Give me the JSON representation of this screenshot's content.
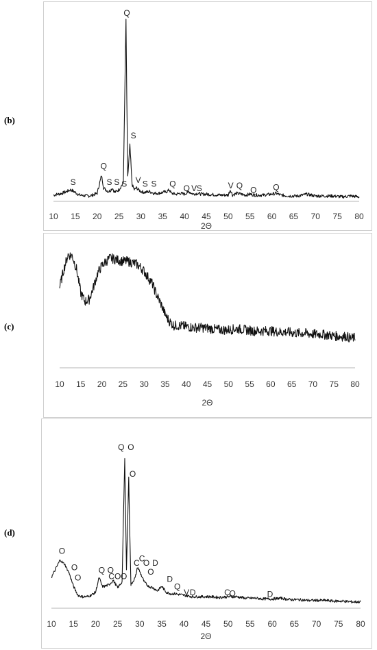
{
  "chart_data": [
    {
      "id": "b",
      "type": "line",
      "panel_label": "(b)",
      "xlabel": "2Θ",
      "xlim": [
        10,
        80
      ],
      "xticks": [
        "10",
        "15",
        "20",
        "25",
        "30",
        "35",
        "40",
        "45",
        "50",
        "55",
        "60",
        "65",
        "70",
        "75",
        "80"
      ],
      "grid": false,
      "series": [
        {
          "x": [
            10,
            12,
            14,
            16,
            18,
            19,
            20,
            21,
            21.5,
            22,
            22.5,
            23,
            23.5,
            24,
            25,
            26,
            26.6,
            27,
            27.5,
            28,
            28.5,
            29,
            30,
            31,
            32,
            33,
            34,
            36,
            36.5,
            37,
            38,
            39,
            40,
            41,
            42,
            43,
            44,
            45,
            48,
            50,
            50.5,
            51,
            52,
            54,
            55,
            56,
            58,
            60,
            61,
            62,
            64,
            66,
            68,
            70,
            72,
            74,
            76,
            78,
            80
          ],
          "y": [
            2,
            3,
            5,
            2,
            1.5,
            2,
            3,
            13,
            6,
            5,
            4,
            4.5,
            6,
            3.5,
            5,
            9,
            100,
            12,
            30,
            8,
            5,
            6,
            4,
            3.5,
            4,
            3,
            3,
            4,
            5,
            3,
            2.5,
            3,
            2.5,
            4,
            2.5,
            3,
            2.5,
            2.5,
            2,
            2,
            5,
            2,
            3,
            2,
            2.5,
            2,
            2,
            2.5,
            3,
            2,
            1.5,
            1.5,
            2.5,
            1.5,
            1.5,
            1.5,
            1,
            1.5,
            1
          ]
        }
      ],
      "annotations": [
        {
          "x": 14.5,
          "y": 7,
          "text": "S"
        },
        {
          "x": 21.5,
          "y": 16,
          "text": "Q"
        },
        {
          "x": 22.8,
          "y": 7,
          "text": "S"
        },
        {
          "x": 24.5,
          "y": 7,
          "text": "S"
        },
        {
          "x": 26.2,
          "y": 6,
          "text": "S"
        },
        {
          "x": 26.8,
          "y": 102,
          "text": "Q"
        },
        {
          "x": 28.3,
          "y": 33,
          "text": "S"
        },
        {
          "x": 29.4,
          "y": 8,
          "text": "V"
        },
        {
          "x": 31,
          "y": 6,
          "text": "S"
        },
        {
          "x": 33,
          "y": 6,
          "text": "S"
        },
        {
          "x": 37.3,
          "y": 6,
          "text": "Q"
        },
        {
          "x": 40.5,
          "y": 3.5,
          "text": "Q"
        },
        {
          "x": 42.2,
          "y": 3.5,
          "text": "V"
        },
        {
          "x": 43.4,
          "y": 3.5,
          "text": "S"
        },
        {
          "x": 50.6,
          "y": 5,
          "text": "V"
        },
        {
          "x": 52.6,
          "y": 5,
          "text": "Q"
        },
        {
          "x": 55.8,
          "y": 2.5,
          "text": "Q"
        },
        {
          "x": 61,
          "y": 4,
          "text": "Q"
        }
      ]
    },
    {
      "id": "c",
      "type": "line",
      "panel_label": "(c)",
      "xlabel": "2Θ",
      "xlim": [
        10,
        80
      ],
      "xticks": [
        "10",
        "15",
        "20",
        "25",
        "30",
        "35",
        "40",
        "45",
        "50",
        "55",
        "60",
        "65",
        "70",
        "75",
        "80"
      ],
      "grid": false,
      "series": [
        {
          "x": [
            10,
            11,
            12,
            13,
            14,
            15,
            16,
            17,
            18,
            19,
            20,
            21,
            22,
            23,
            24,
            25,
            26,
            27,
            28,
            29,
            30,
            31,
            32,
            33,
            34,
            35,
            36,
            37,
            38,
            40,
            42,
            44,
            46,
            48,
            50,
            52,
            54,
            56,
            58,
            60,
            62,
            64,
            66,
            68,
            70,
            72,
            74,
            76,
            78,
            79,
            80
          ],
          "y": [
            55,
            72,
            85,
            84,
            72,
            50,
            42,
            44,
            55,
            68,
            75,
            79,
            82,
            81,
            80,
            79,
            79,
            78,
            77,
            74,
            70,
            64,
            58,
            48,
            40,
            30,
            24,
            20,
            20,
            19,
            18,
            18,
            17,
            16,
            16,
            17,
            16,
            15,
            15,
            15,
            14,
            14,
            13,
            13,
            12,
            12,
            11,
            10,
            10,
            8,
            9
          ]
        }
      ]
    },
    {
      "id": "d",
      "type": "line",
      "panel_label": "(d)",
      "xlabel": "2Θ",
      "xlim": [
        10,
        80
      ],
      "xticks": [
        "10",
        "15",
        "20",
        "25",
        "30",
        "35",
        "40",
        "45",
        "50",
        "55",
        "60",
        "65",
        "70",
        "75",
        "80"
      ],
      "grid": false,
      "series": [
        {
          "x": [
            10,
            11,
            12,
            12.5,
            13,
            14,
            15,
            16,
            17,
            18,
            19,
            20,
            20.8,
            21.5,
            22,
            23,
            24,
            25,
            26,
            26.6,
            27,
            27.5,
            28,
            29,
            29.5,
            30,
            31,
            32,
            33,
            34,
            35,
            36,
            37,
            38,
            40,
            42,
            44,
            46,
            48,
            50,
            52,
            54,
            56,
            58,
            60,
            62,
            64,
            66,
            68,
            70,
            72,
            74,
            76,
            78,
            80
          ],
          "y": [
            18,
            24,
            30,
            28,
            27,
            21,
            12,
            6,
            5,
            5,
            6,
            8,
            18,
            12,
            12,
            13,
            16,
            11,
            15,
            98,
            24,
            85,
            13,
            18,
            25,
            22,
            15,
            12,
            11,
            9,
            12,
            8,
            7,
            7,
            6,
            5,
            5,
            5,
            4.5,
            5,
            5,
            4,
            4,
            3.5,
            3.5,
            4,
            3,
            3,
            2.5,
            2.5,
            2.5,
            2,
            2,
            1.5,
            1.5
          ]
        }
      ],
      "annotations": [
        {
          "x": 12.4,
          "y": 33,
          "text": "O"
        },
        {
          "x": 15.2,
          "y": 22,
          "text": "O"
        },
        {
          "x": 16,
          "y": 15,
          "text": "O"
        },
        {
          "x": 21.4,
          "y": 20,
          "text": "Q"
        },
        {
          "x": 23.4,
          "y": 20,
          "text": "O"
        },
        {
          "x": 23.6,
          "y": 16,
          "text": "C"
        },
        {
          "x": 25,
          "y": 16,
          "text": "O"
        },
        {
          "x": 26.4,
          "y": 16,
          "text": "O"
        },
        {
          "x": 25.8,
          "y": 103,
          "text": "Q"
        },
        {
          "x": 28,
          "y": 103,
          "text": "O"
        },
        {
          "x": 28.4,
          "y": 85,
          "text": "O"
        },
        {
          "x": 29.3,
          "y": 25,
          "text": "C"
        },
        {
          "x": 30.5,
          "y": 28,
          "text": "C"
        },
        {
          "x": 31.5,
          "y": 25,
          "text": "O"
        },
        {
          "x": 33.5,
          "y": 25,
          "text": "D"
        },
        {
          "x": 32.5,
          "y": 19,
          "text": "O"
        },
        {
          "x": 36.8,
          "y": 14,
          "text": "D"
        },
        {
          "x": 38.5,
          "y": 9,
          "text": "Q"
        },
        {
          "x": 40.6,
          "y": 5,
          "text": "V"
        },
        {
          "x": 42,
          "y": 5,
          "text": "D"
        },
        {
          "x": 49.8,
          "y": 5,
          "text": "C"
        },
        {
          "x": 51,
          "y": 4.5,
          "text": "O"
        },
        {
          "x": 59.5,
          "y": 4,
          "text": "D"
        }
      ]
    }
  ]
}
